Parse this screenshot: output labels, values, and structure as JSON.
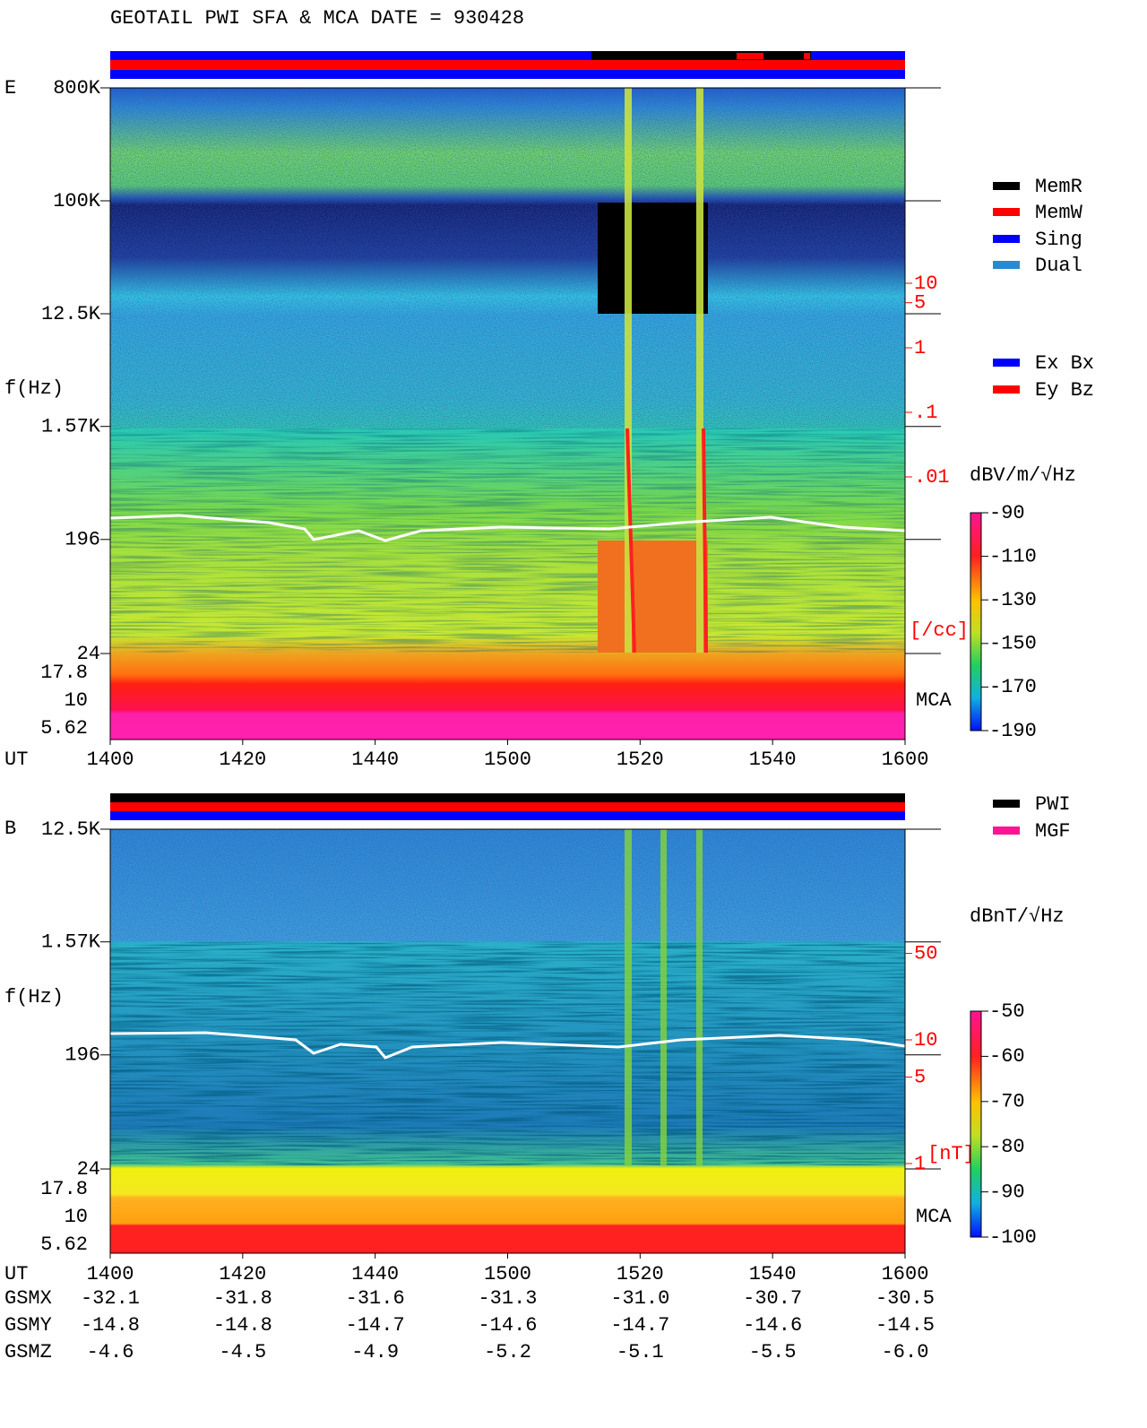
{
  "header": {
    "title": "GEOTAIL  PWI SFA & MCA   DATE = 930428"
  },
  "panels": [
    {
      "label": "E",
      "y_axis_label": "f(Hz)",
      "yticks": [
        {
          "value": 800000,
          "label": "800K"
        },
        {
          "value": 100000,
          "label": "100K"
        },
        {
          "value": 12500,
          "label": "12.5K"
        },
        {
          "value": 1570,
          "label": "1.57K"
        },
        196,
        24
      ],
      "mca_ticks": [
        17.8,
        10,
        5.62
      ],
      "mca_label": "MCA",
      "x_axis_label": "UT",
      "xticks": [
        "1400",
        "1420",
        "1440",
        "1500",
        "1520",
        "1540",
        "1600"
      ],
      "density_ticks": [
        10,
        5,
        1,
        {
          "value": 0.1,
          "label": ".1"
        },
        {
          "value": 0.01,
          "label": ".01"
        }
      ],
      "density_unit": "[/cc]",
      "colorbar": {
        "unit": "dBV/m/√Hz",
        "lim": [
          -90,
          -190
        ],
        "ticks": [
          -90,
          -110,
          -130,
          -150,
          -170,
          -190
        ]
      },
      "legend": [
        {
          "name": "MemR",
          "color": "#000000"
        },
        {
          "name": "MemW",
          "color": "#ff0000"
        },
        {
          "name": "Sing",
          "color": "#0000ff"
        },
        {
          "name": "Dual",
          "color": "#2a8ad0"
        }
      ],
      "legend2": [
        {
          "name": "Ex Bx",
          "color": "#0000ff"
        },
        {
          "name": "Ey Bz",
          "color": "#ff0000"
        }
      ]
    },
    {
      "label": "B",
      "y_axis_label": "f(Hz)",
      "yticks": [
        {
          "value": 12500,
          "label": "12.5K"
        },
        {
          "value": 1570,
          "label": "1.57K"
        },
        196,
        24
      ],
      "mca_ticks": [
        17.8,
        10,
        5.62
      ],
      "mca_label": "MCA",
      "x_axis_label": "UT",
      "xticks": [
        "1400",
        "1420",
        "1440",
        "1500",
        "1520",
        "1540",
        "1600"
      ],
      "density_ticks": [
        50,
        10,
        5,
        1
      ],
      "density_unit": "[nT]",
      "colorbar": {
        "unit": "dBnT/√Hz",
        "lim": [
          -50,
          -100
        ],
        "ticks": [
          -50,
          -60,
          -70,
          -80,
          -90,
          -100
        ]
      },
      "legend": [
        {
          "name": "PWI",
          "color": "#000000"
        },
        {
          "name": "MGF",
          "color": "#ff1493"
        }
      ]
    }
  ],
  "table": {
    "row_labels": [
      "GSMX",
      "GSMY",
      "GSMZ"
    ],
    "rows": [
      [
        "-32.1",
        "-31.8",
        "-31.6",
        "-31.3",
        "-31.0",
        "-30.7",
        "-30.5"
      ],
      [
        "-14.8",
        "-14.8",
        "-14.7",
        "-14.6",
        "-14.7",
        "-14.6",
        "-14.5"
      ],
      [
        "-4.6",
        "-4.5",
        "-4.9",
        "-5.2",
        "-5.1",
        "-5.5",
        "-6.0"
      ]
    ]
  }
}
